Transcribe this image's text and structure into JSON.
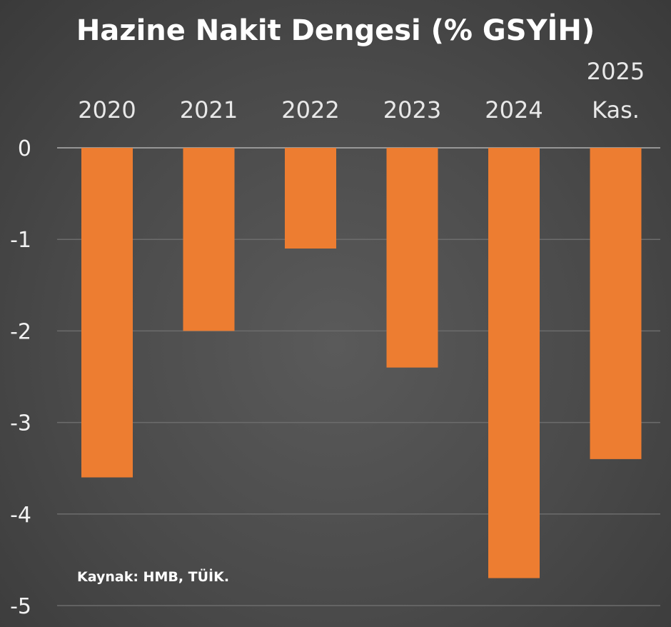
{
  "chart_data": {
    "type": "bar",
    "title": "Hazine Nakit Dengesi (% GSYİH)",
    "categories": [
      [
        "2020"
      ],
      [
        "2021"
      ],
      [
        "2022"
      ],
      [
        "2023"
      ],
      [
        "2024"
      ],
      [
        "2025",
        "Kas."
      ]
    ],
    "values": [
      -3.6,
      -2.0,
      -1.1,
      -2.4,
      -4.7,
      -3.4
    ],
    "ylim": [
      -5,
      0
    ],
    "yticks": [
      0,
      -1,
      -2,
      -3,
      -4,
      -5
    ],
    "grid": true,
    "bar_color": "#ed7d31",
    "source": "Kaynak: HMB, TÜİK."
  }
}
